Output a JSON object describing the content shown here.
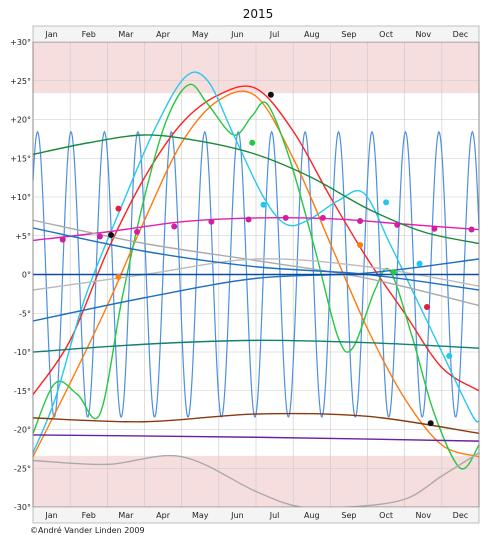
{
  "chart_data": {
    "type": "line",
    "title": "2015",
    "xlabel": "",
    "ylabel": "",
    "months": [
      "Jan",
      "Feb",
      "Mar",
      "Apr",
      "May",
      "Jun",
      "Jul",
      "Aug",
      "Sep",
      "Oct",
      "Nov",
      "Dec"
    ],
    "xlim": [
      0,
      12
    ],
    "ylim": [
      -30,
      30
    ],
    "yticks": [
      30,
      25,
      20,
      15,
      10,
      5,
      0,
      -5,
      -10,
      -15,
      -20,
      -25,
      -30
    ],
    "ytick_labels": [
      "+30°",
      "+25°",
      "+20°",
      "+15°",
      "+10°",
      "+5°",
      "0°",
      "-5°",
      "-10°",
      "-15°",
      "-20°",
      "-25°",
      "-30°"
    ],
    "shaded_bands": [
      {
        "from": 23.4,
        "to": 30,
        "color": "#f7dede"
      },
      {
        "from": -30,
        "to": -23.4,
        "color": "#f7dede"
      }
    ],
    "grid": true,
    "credit": "©André Vander Linden 2009",
    "series": [
      {
        "color": "#4d8fe0",
        "fn": "moon",
        "amp": 18.4,
        "period": 0.9,
        "phase": 0.72
      },
      {
        "color": "#ff2020",
        "points": [
          [
            0,
            -15.5
          ],
          [
            1,
            -8.5
          ],
          [
            2,
            3
          ],
          [
            3,
            12.5
          ],
          [
            4,
            19.5
          ],
          [
            5,
            23.2
          ],
          [
            6,
            24
          ],
          [
            7,
            18.5
          ],
          [
            8,
            10
          ],
          [
            9,
            2
          ],
          [
            10,
            -5
          ],
          [
            11,
            -12
          ],
          [
            12,
            -15
          ]
        ],
        "markers": [
          [
            2.3,
            8.5
          ],
          [
            10.6,
            -4.2
          ]
        ],
        "marker_color": "#e0203a"
      },
      {
        "color": "#ff7a10",
        "points": [
          [
            0,
            -23.5
          ],
          [
            1,
            -14
          ],
          [
            2,
            -4
          ],
          [
            3,
            7
          ],
          [
            4,
            17
          ],
          [
            5,
            22.5
          ],
          [
            6,
            23
          ],
          [
            7,
            15
          ],
          [
            8,
            4
          ],
          [
            9,
            -7
          ],
          [
            10,
            -16
          ],
          [
            11,
            -22
          ],
          [
            12,
            -23.5
          ]
        ],
        "markers": [
          [
            2.3,
            -0.3
          ],
          [
            8.8,
            3.8
          ]
        ],
        "marker_color": "#ff7a10"
      },
      {
        "color": "#26c840",
        "points": [
          [
            0,
            -20.5
          ],
          [
            0.6,
            -14
          ],
          [
            1.2,
            -15.5
          ],
          [
            1.8,
            -18
          ],
          [
            2.4,
            -3
          ],
          [
            3,
            10
          ],
          [
            3.6,
            20
          ],
          [
            4.2,
            24.5
          ],
          [
            4.7,
            22
          ],
          [
            5.4,
            18
          ],
          [
            5.9,
            20.5
          ],
          [
            6.3,
            22
          ],
          [
            6.9,
            15
          ],
          [
            7.6,
            3
          ],
          [
            8.2,
            -8
          ],
          [
            8.6,
            -9.5
          ],
          [
            9.2,
            -2
          ],
          [
            9.6,
            0.5
          ],
          [
            10.2,
            -8
          ],
          [
            10.8,
            -18
          ],
          [
            11.5,
            -25
          ],
          [
            12,
            -22
          ]
        ],
        "markers": [
          [
            5.9,
            17
          ],
          [
            9.7,
            0.3
          ]
        ],
        "marker_color": "#26c840"
      },
      {
        "color": "#26c8f0",
        "points": [
          [
            0,
            -23
          ],
          [
            0.6,
            -16
          ],
          [
            1.4,
            -3
          ],
          [
            2.4,
            9
          ],
          [
            3.3,
            19
          ],
          [
            4.1,
            25.5
          ],
          [
            4.7,
            25
          ],
          [
            5.4,
            18
          ],
          [
            6.2,
            10
          ],
          [
            6.8,
            6.5
          ],
          [
            7.4,
            7
          ],
          [
            8.2,
            9.5
          ],
          [
            8.9,
            10.5
          ],
          [
            9.6,
            4
          ],
          [
            10.3,
            -3
          ],
          [
            11,
            -10
          ],
          [
            11.8,
            -18
          ],
          [
            12,
            -19
          ]
        ],
        "markers": [
          [
            6.2,
            9
          ],
          [
            9.5,
            9.3
          ],
          [
            10.4,
            1.4
          ],
          [
            11.2,
            -10.5
          ]
        ],
        "marker_color": "#20c8ec"
      },
      {
        "color": "#111111",
        "points": [],
        "markers": [
          [
            2.1,
            5.1
          ],
          [
            6.4,
            23.2
          ],
          [
            10.7,
            -19.2
          ]
        ],
        "marker_color": "#111111"
      },
      {
        "color": "#e020b0",
        "points": [
          [
            0,
            4.4
          ],
          [
            2,
            5.5
          ],
          [
            4,
            6.8
          ],
          [
            6,
            7.3
          ],
          [
            8,
            7.2
          ],
          [
            10,
            6.5
          ],
          [
            12,
            5.8
          ]
        ],
        "markers": [
          [
            0.8,
            4.5
          ],
          [
            1.8,
            4.9
          ],
          [
            2.8,
            5.5
          ],
          [
            3.8,
            6.2
          ],
          [
            4.8,
            6.8
          ],
          [
            5.8,
            7.1
          ],
          [
            6.8,
            7.3
          ],
          [
            7.8,
            7.3
          ],
          [
            8.8,
            6.9
          ],
          [
            9.8,
            6.4
          ],
          [
            10.8,
            5.9
          ],
          [
            11.8,
            5.8
          ]
        ],
        "marker_color": "#d020a0"
      },
      {
        "color": "#1a8a3a",
        "points": [
          [
            0,
            15.5
          ],
          [
            1.5,
            17
          ],
          [
            3,
            18
          ],
          [
            4.5,
            17.2
          ],
          [
            6,
            15.5
          ],
          [
            7.5,
            12.5
          ],
          [
            9,
            8.5
          ],
          [
            10.5,
            5.5
          ],
          [
            12,
            4
          ]
        ]
      },
      {
        "color": "#aaaaaa",
        "points": [
          [
            0,
            7
          ],
          [
            3,
            4
          ],
          [
            6,
            1.8
          ],
          [
            9,
            -0.5
          ],
          [
            12,
            -4
          ]
        ]
      },
      {
        "color": "#bbbbbb",
        "points": [
          [
            0,
            -2
          ],
          [
            3,
            0
          ],
          [
            6,
            2
          ],
          [
            9,
            1
          ],
          [
            12,
            -1.5
          ]
        ]
      },
      {
        "color": "#1e6fbf",
        "points": [
          [
            0,
            6
          ],
          [
            3,
            3
          ],
          [
            6,
            1
          ],
          [
            9,
            0
          ],
          [
            12,
            -2
          ]
        ]
      },
      {
        "color": "#1e6fbf",
        "points": [
          [
            0,
            -6
          ],
          [
            3,
            -3
          ],
          [
            6,
            -0.5
          ],
          [
            9,
            0.2
          ],
          [
            12,
            2
          ]
        ]
      },
      {
        "color": "#0a4aa0",
        "points": [
          [
            0,
            0
          ],
          [
            12,
            0
          ]
        ]
      },
      {
        "color": "#108070",
        "points": [
          [
            0,
            -10
          ],
          [
            3,
            -9
          ],
          [
            6,
            -8.5
          ],
          [
            9,
            -8.8
          ],
          [
            12,
            -9.5
          ]
        ]
      },
      {
        "color": "#8a3a10",
        "points": [
          [
            0,
            -18.5
          ],
          [
            3,
            -19
          ],
          [
            6,
            -18
          ],
          [
            9,
            -18.3
          ],
          [
            12,
            -20.5
          ]
        ]
      },
      {
        "color": "#6a20a0",
        "points": [
          [
            0,
            -20.7
          ],
          [
            6,
            -21
          ],
          [
            12,
            -21.5
          ]
        ]
      },
      {
        "color": "#aaaaaa",
        "points": [
          [
            0,
            -24
          ],
          [
            2,
            -24.5
          ],
          [
            4,
            -23.5
          ],
          [
            6,
            -28
          ],
          [
            7.2,
            -30
          ],
          [
            8.5,
            -30
          ],
          [
            10,
            -29
          ],
          [
            11,
            -26
          ],
          [
            12,
            -23
          ]
        ]
      }
    ]
  }
}
